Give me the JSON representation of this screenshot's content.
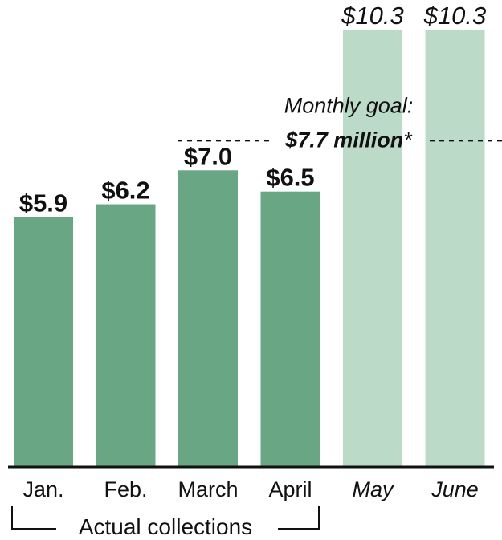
{
  "chart_data": {
    "type": "bar",
    "categories": [
      "Jan.",
      "Feb.",
      "March",
      "April",
      "May",
      "June"
    ],
    "values": [
      5.9,
      6.2,
      7.0,
      6.5,
      10.3,
      10.3
    ],
    "value_labels": [
      "$5.9",
      "$6.2",
      "$7.0",
      "$6.5",
      "$10.3",
      "$10.3"
    ],
    "projected": [
      false,
      false,
      false,
      false,
      true,
      true
    ],
    "ylim": [
      0,
      10.3
    ],
    "colors": {
      "actual": "#68a684",
      "projected": "#bcdac8",
      "axis": "#111111"
    },
    "goal": {
      "value": 7.7,
      "label_line1": "Monthly goal:",
      "label_line2": "$7.7 million",
      "label_suffix": "*"
    },
    "bracket_label": "Actual collections",
    "title": "",
    "xlabel": "",
    "ylabel": "",
    "grid": false
  }
}
